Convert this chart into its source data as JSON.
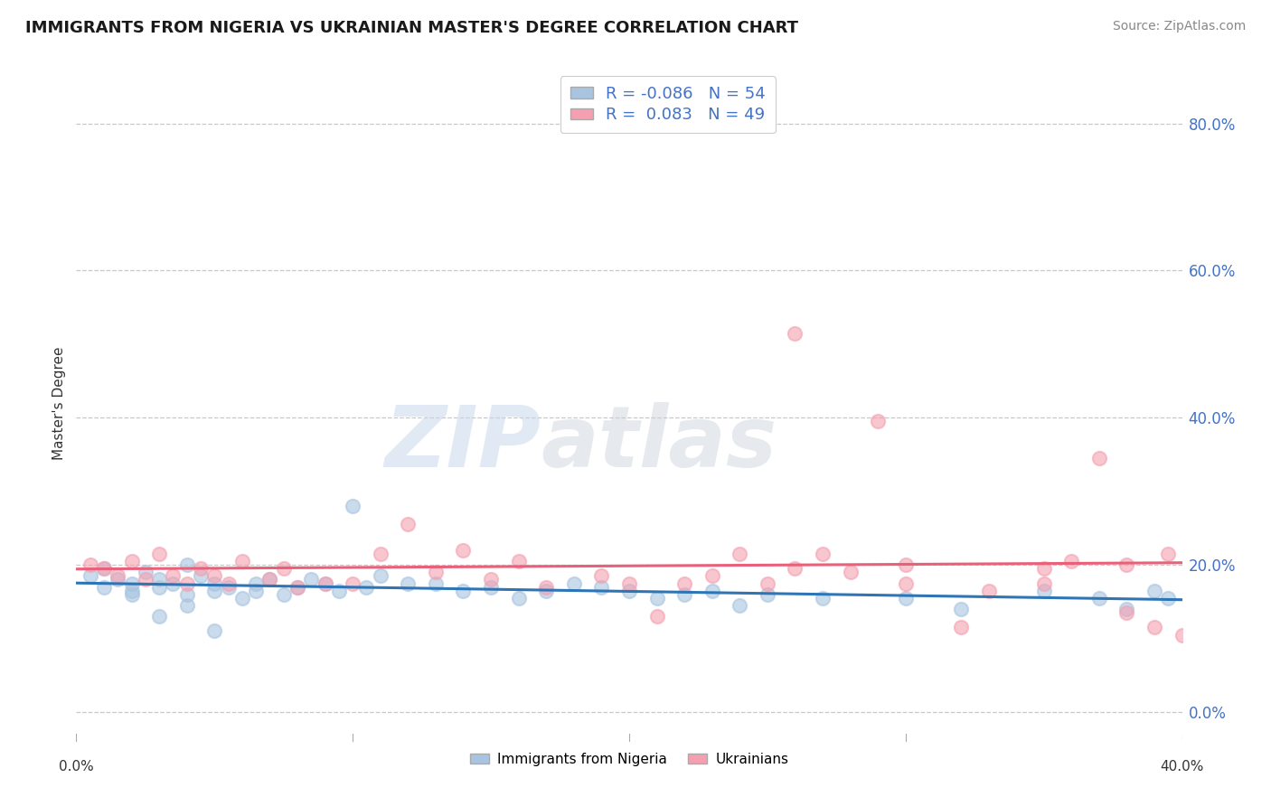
{
  "title": "IMMIGRANTS FROM NIGERIA VS UKRAINIAN MASTER'S DEGREE CORRELATION CHART",
  "source": "Source: ZipAtlas.com",
  "ylabel": "Master's Degree",
  "x_min": 0.0,
  "x_max": 0.4,
  "y_min": -0.04,
  "y_max": 0.88,
  "ytick_values": [
    0.0,
    0.2,
    0.4,
    0.6,
    0.8
  ],
  "xtick_values": [
    0.0,
    0.1,
    0.2,
    0.3,
    0.4
  ],
  "grid_color": "#c8c8c8",
  "background_color": "#ffffff",
  "nigeria_color": "#a8c4e0",
  "ukraine_color": "#f4a0b0",
  "nigeria_line_color": "#2e75b6",
  "ukraine_line_color": "#e8607a",
  "legend_nigeria_label": "Immigrants from Nigeria",
  "legend_ukraine_label": "Ukrainians",
  "R_nigeria": -0.086,
  "N_nigeria": 54,
  "R_ukraine": 0.083,
  "N_ukraine": 49,
  "watermark_zip": "ZIP",
  "watermark_atlas": "atlas",
  "title_fontsize": 13,
  "source_fontsize": 10,
  "nigeria_scatter_x": [
    0.005,
    0.01,
    0.015,
    0.02,
    0.02,
    0.025,
    0.03,
    0.03,
    0.035,
    0.04,
    0.04,
    0.045,
    0.05,
    0.05,
    0.055,
    0.06,
    0.065,
    0.065,
    0.07,
    0.075,
    0.08,
    0.085,
    0.09,
    0.095,
    0.1,
    0.105,
    0.11,
    0.12,
    0.13,
    0.14,
    0.15,
    0.16,
    0.17,
    0.18,
    0.19,
    0.2,
    0.21,
    0.22,
    0.23,
    0.24,
    0.25,
    0.27,
    0.3,
    0.32,
    0.35,
    0.37,
    0.38,
    0.39,
    0.01,
    0.02,
    0.03,
    0.04,
    0.05,
    0.395
  ],
  "nigeria_scatter_y": [
    0.185,
    0.195,
    0.18,
    0.175,
    0.165,
    0.19,
    0.18,
    0.17,
    0.175,
    0.2,
    0.16,
    0.185,
    0.165,
    0.175,
    0.17,
    0.155,
    0.175,
    0.165,
    0.18,
    0.16,
    0.17,
    0.18,
    0.175,
    0.165,
    0.28,
    0.17,
    0.185,
    0.175,
    0.175,
    0.165,
    0.17,
    0.155,
    0.165,
    0.175,
    0.17,
    0.165,
    0.155,
    0.16,
    0.165,
    0.145,
    0.16,
    0.155,
    0.155,
    0.14,
    0.165,
    0.155,
    0.14,
    0.165,
    0.17,
    0.16,
    0.13,
    0.145,
    0.11,
    0.155
  ],
  "ukraine_scatter_x": [
    0.005,
    0.01,
    0.015,
    0.02,
    0.025,
    0.03,
    0.035,
    0.04,
    0.045,
    0.05,
    0.055,
    0.06,
    0.07,
    0.075,
    0.08,
    0.09,
    0.1,
    0.11,
    0.12,
    0.13,
    0.14,
    0.15,
    0.16,
    0.17,
    0.19,
    0.2,
    0.21,
    0.22,
    0.23,
    0.24,
    0.25,
    0.26,
    0.27,
    0.28,
    0.29,
    0.3,
    0.32,
    0.33,
    0.35,
    0.36,
    0.37,
    0.38,
    0.39,
    0.395,
    0.26,
    0.3,
    0.35,
    0.38,
    0.4
  ],
  "ukraine_scatter_y": [
    0.2,
    0.195,
    0.185,
    0.205,
    0.18,
    0.215,
    0.185,
    0.175,
    0.195,
    0.185,
    0.175,
    0.205,
    0.18,
    0.195,
    0.17,
    0.175,
    0.175,
    0.215,
    0.255,
    0.19,
    0.22,
    0.18,
    0.205,
    0.17,
    0.185,
    0.175,
    0.13,
    0.175,
    0.185,
    0.215,
    0.175,
    0.195,
    0.215,
    0.19,
    0.395,
    0.175,
    0.115,
    0.165,
    0.175,
    0.205,
    0.345,
    0.2,
    0.115,
    0.215,
    0.515,
    0.2,
    0.195,
    0.135,
    0.105
  ]
}
